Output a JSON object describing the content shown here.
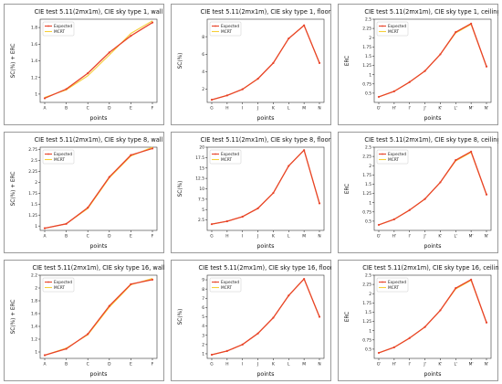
{
  "colors": {
    "expected": "#e8432a",
    "mcrt": "#f6cf3a",
    "border": "#9a9a9a",
    "axis": "#333333",
    "grid": "#e6e6e6"
  },
  "legend_placement": "top-left",
  "chart_data": [
    {
      "type": "line",
      "title": "CIE test 5.11(2mx1m), CIE sky type 1, wall",
      "xlabel": "points",
      "ylabel": "SC(%) + ERC",
      "categories": [
        "A",
        "B",
        "C",
        "D",
        "E",
        "F"
      ],
      "ylim": [
        0.9,
        1.9
      ],
      "yticks": [
        1.0,
        1.2,
        1.4,
        1.6,
        1.8
      ],
      "grid": false,
      "series": [
        {
          "name": "Expected",
          "values": [
            0.95,
            1.06,
            1.25,
            1.5,
            1.7,
            1.86
          ]
        },
        {
          "name": "MCRT",
          "values": [
            0.96,
            1.05,
            1.22,
            1.47,
            1.73,
            1.88
          ]
        }
      ]
    },
    {
      "type": "line",
      "title": "CIE test 5.11(2mx1m), CIE sky type 1, floor",
      "xlabel": "points",
      "ylabel": "SC(%)",
      "categories": [
        "G",
        "H",
        "I",
        "J",
        "K",
        "L",
        "M",
        "N"
      ],
      "ylim": [
        0.5,
        10
      ],
      "yticks": [
        2,
        4,
        6,
        8
      ],
      "grid": false,
      "series": [
        {
          "name": "Expected",
          "values": [
            0.8,
            1.3,
            2.0,
            3.2,
            5.0,
            7.8,
            9.3,
            5.0
          ]
        },
        {
          "name": "MCRT",
          "values": [
            0.8,
            1.3,
            2.0,
            3.2,
            5.0,
            7.8,
            9.3,
            5.0
          ]
        }
      ]
    },
    {
      "type": "line",
      "title": "CIE test 5.11(2mx1m), CIE sky type 1, ceiling",
      "xlabel": "points",
      "ylabel": "ERC",
      "categories": [
        "G'",
        "H'",
        "I'",
        "J'",
        "K'",
        "L'",
        "M'",
        "N'"
      ],
      "ylim": [
        0.25,
        2.5
      ],
      "yticks": [
        0.5,
        0.75,
        1.0,
        1.25,
        1.5,
        1.75,
        2.0,
        2.25,
        2.5
      ],
      "grid": false,
      "series": [
        {
          "name": "Expected",
          "values": [
            0.4,
            0.55,
            0.8,
            1.1,
            1.55,
            2.15,
            2.38,
            1.22
          ]
        },
        {
          "name": "MCRT",
          "values": [
            0.4,
            0.55,
            0.8,
            1.1,
            1.55,
            2.13,
            2.36,
            1.22
          ]
        }
      ]
    },
    {
      "type": "line",
      "title": "CIE test 5.11(2mx1m), CIE sky type  8, wall",
      "xlabel": "points",
      "ylabel": "SC(%) + ERC",
      "categories": [
        "A",
        "B",
        "C",
        "D",
        "E",
        "F"
      ],
      "ylim": [
        0.9,
        2.8
      ],
      "yticks": [
        1.0,
        1.25,
        1.5,
        1.75,
        2.0,
        2.25,
        2.5,
        2.75
      ],
      "grid": false,
      "series": [
        {
          "name": "Expected",
          "values": [
            0.95,
            1.05,
            1.42,
            2.12,
            2.62,
            2.77
          ]
        },
        {
          "name": "MCRT",
          "values": [
            0.95,
            1.05,
            1.4,
            2.1,
            2.6,
            2.8
          ]
        }
      ]
    },
    {
      "type": "line",
      "title": "CIE test 5.11(2mx1m), CIE sky type  8, floor",
      "xlabel": "points",
      "ylabel": "SC(%)",
      "categories": [
        "G",
        "H",
        "I",
        "J",
        "K",
        "L",
        "M",
        "N"
      ],
      "ylim": [
        0,
        20
      ],
      "yticks": [
        2.5,
        5.0,
        7.5,
        10.0,
        12.5,
        15.0,
        17.5,
        20.0
      ],
      "grid": false,
      "series": [
        {
          "name": "Expected",
          "values": [
            1.5,
            2.2,
            3.3,
            5.3,
            9.0,
            15.5,
            19.3,
            6.5
          ]
        },
        {
          "name": "MCRT",
          "values": [
            1.5,
            2.2,
            3.3,
            5.3,
            9.0,
            15.5,
            19.3,
            6.5
          ]
        }
      ]
    },
    {
      "type": "line",
      "title": "CIE test 5.11(2mx1m), CIE sky type  8, ceiling",
      "xlabel": "points",
      "ylabel": "ERC",
      "categories": [
        "G'",
        "H'",
        "I'",
        "J'",
        "K'",
        "L'",
        "M'",
        "N'"
      ],
      "ylim": [
        0.25,
        2.5
      ],
      "yticks": [
        0.5,
        0.75,
        1.0,
        1.25,
        1.5,
        1.75,
        2.0,
        2.25,
        2.5
      ],
      "grid": false,
      "series": [
        {
          "name": "Expected",
          "values": [
            0.4,
            0.55,
            0.8,
            1.1,
            1.55,
            2.15,
            2.38,
            1.22
          ]
        },
        {
          "name": "MCRT",
          "values": [
            0.4,
            0.55,
            0.8,
            1.1,
            1.55,
            2.13,
            2.36,
            1.22
          ]
        }
      ]
    },
    {
      "type": "line",
      "title": "CIE test 5.11(2mx1m), CIE sky type 16, wall",
      "xlabel": "points",
      "ylabel": "SC(%) + ERC",
      "categories": [
        "A",
        "B",
        "C",
        "D",
        "E",
        "F"
      ],
      "ylim": [
        0.9,
        2.2
      ],
      "yticks": [
        1.0,
        1.2,
        1.4,
        1.6,
        1.8,
        2.0,
        2.2
      ],
      "grid": false,
      "series": [
        {
          "name": "Expected",
          "values": [
            0.95,
            1.05,
            1.28,
            1.72,
            2.06,
            2.13
          ]
        },
        {
          "name": "MCRT",
          "values": [
            0.95,
            1.06,
            1.27,
            1.7,
            2.05,
            2.15
          ]
        }
      ]
    },
    {
      "type": "line",
      "title": "CIE test 5.11(2mx1m), CIE sky type 16, floor",
      "xlabel": "points",
      "ylabel": "SC(%)",
      "categories": [
        "G",
        "H",
        "I",
        "J",
        "K",
        "L",
        "M",
        "N"
      ],
      "ylim": [
        0.5,
        9.5
      ],
      "yticks": [
        1,
        2,
        3,
        4,
        5,
        6,
        7,
        8,
        9
      ],
      "grid": false,
      "series": [
        {
          "name": "Expected",
          "values": [
            0.9,
            1.3,
            2.0,
            3.2,
            4.9,
            7.3,
            9.1,
            5.0
          ]
        },
        {
          "name": "MCRT",
          "values": [
            0.9,
            1.3,
            2.0,
            3.2,
            4.9,
            7.3,
            9.1,
            5.0
          ]
        }
      ]
    },
    {
      "type": "line",
      "title": "CIE test 5.11(2mx1m), CIE sky type 16, ceiling",
      "xlabel": "points",
      "ylabel": "ERC",
      "categories": [
        "G'",
        "H'",
        "I'",
        "J'",
        "K'",
        "L'",
        "M'",
        "N'"
      ],
      "ylim": [
        0.25,
        2.5
      ],
      "yticks": [
        0.5,
        0.75,
        1.0,
        1.25,
        1.5,
        1.75,
        2.0,
        2.25,
        2.5
      ],
      "grid": false,
      "series": [
        {
          "name": "Expected",
          "values": [
            0.4,
            0.55,
            0.8,
            1.1,
            1.55,
            2.15,
            2.38,
            1.22
          ]
        },
        {
          "name": "MCRT",
          "values": [
            0.4,
            0.55,
            0.8,
            1.1,
            1.55,
            2.13,
            2.36,
            1.22
          ]
        }
      ]
    }
  ]
}
